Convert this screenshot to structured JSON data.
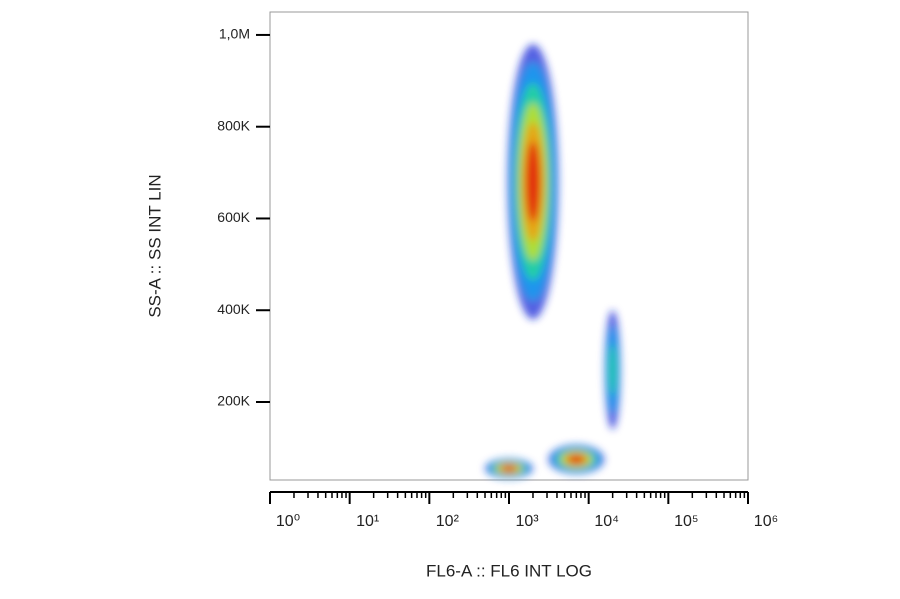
{
  "chart_data": {
    "type": "density",
    "x_label": "FL6-A :: FL6 INT LOG",
    "y_label": "SS-A :: SS INT LIN",
    "x_log": true,
    "xlim": [
      1,
      1000000
    ],
    "xticks": [
      {
        "value": 1,
        "label": "10⁰"
      },
      {
        "value": 10,
        "label": "10¹"
      },
      {
        "value": 100,
        "label": "10²"
      },
      {
        "value": 1000,
        "label": "10³"
      },
      {
        "value": 10000,
        "label": "10⁴"
      },
      {
        "value": 100000,
        "label": "10⁵"
      },
      {
        "value": 1000000,
        "label": "10⁶"
      }
    ],
    "ylim": [
      30000,
      1050000
    ],
    "yticks": [
      {
        "value": 200000,
        "label": "200K"
      },
      {
        "value": 400000,
        "label": "400K"
      },
      {
        "value": 600000,
        "label": "600K"
      },
      {
        "value": 800000,
        "label": "800K"
      },
      {
        "value": 1000000,
        "label": "1,0M"
      }
    ],
    "density_colors": [
      "#1a2bd8",
      "#1aa0f0",
      "#22d89a",
      "#c8e020",
      "#f09a10",
      "#e01a10"
    ],
    "populations": [
      {
        "x": 2000,
        "y": 680000,
        "x_spread": 0.32,
        "y_spread": 300000,
        "levels": 6
      },
      {
        "x": 1000,
        "y": 55000,
        "x_spread": 0.3,
        "y_spread": 22000,
        "levels": 6
      },
      {
        "x": 7000,
        "y": 75000,
        "x_spread": 0.35,
        "y_spread": 32000,
        "levels": 6
      },
      {
        "x": 20000,
        "y": 270000,
        "x_spread": 0.1,
        "y_spread": 130000,
        "levels": 3
      }
    ]
  }
}
